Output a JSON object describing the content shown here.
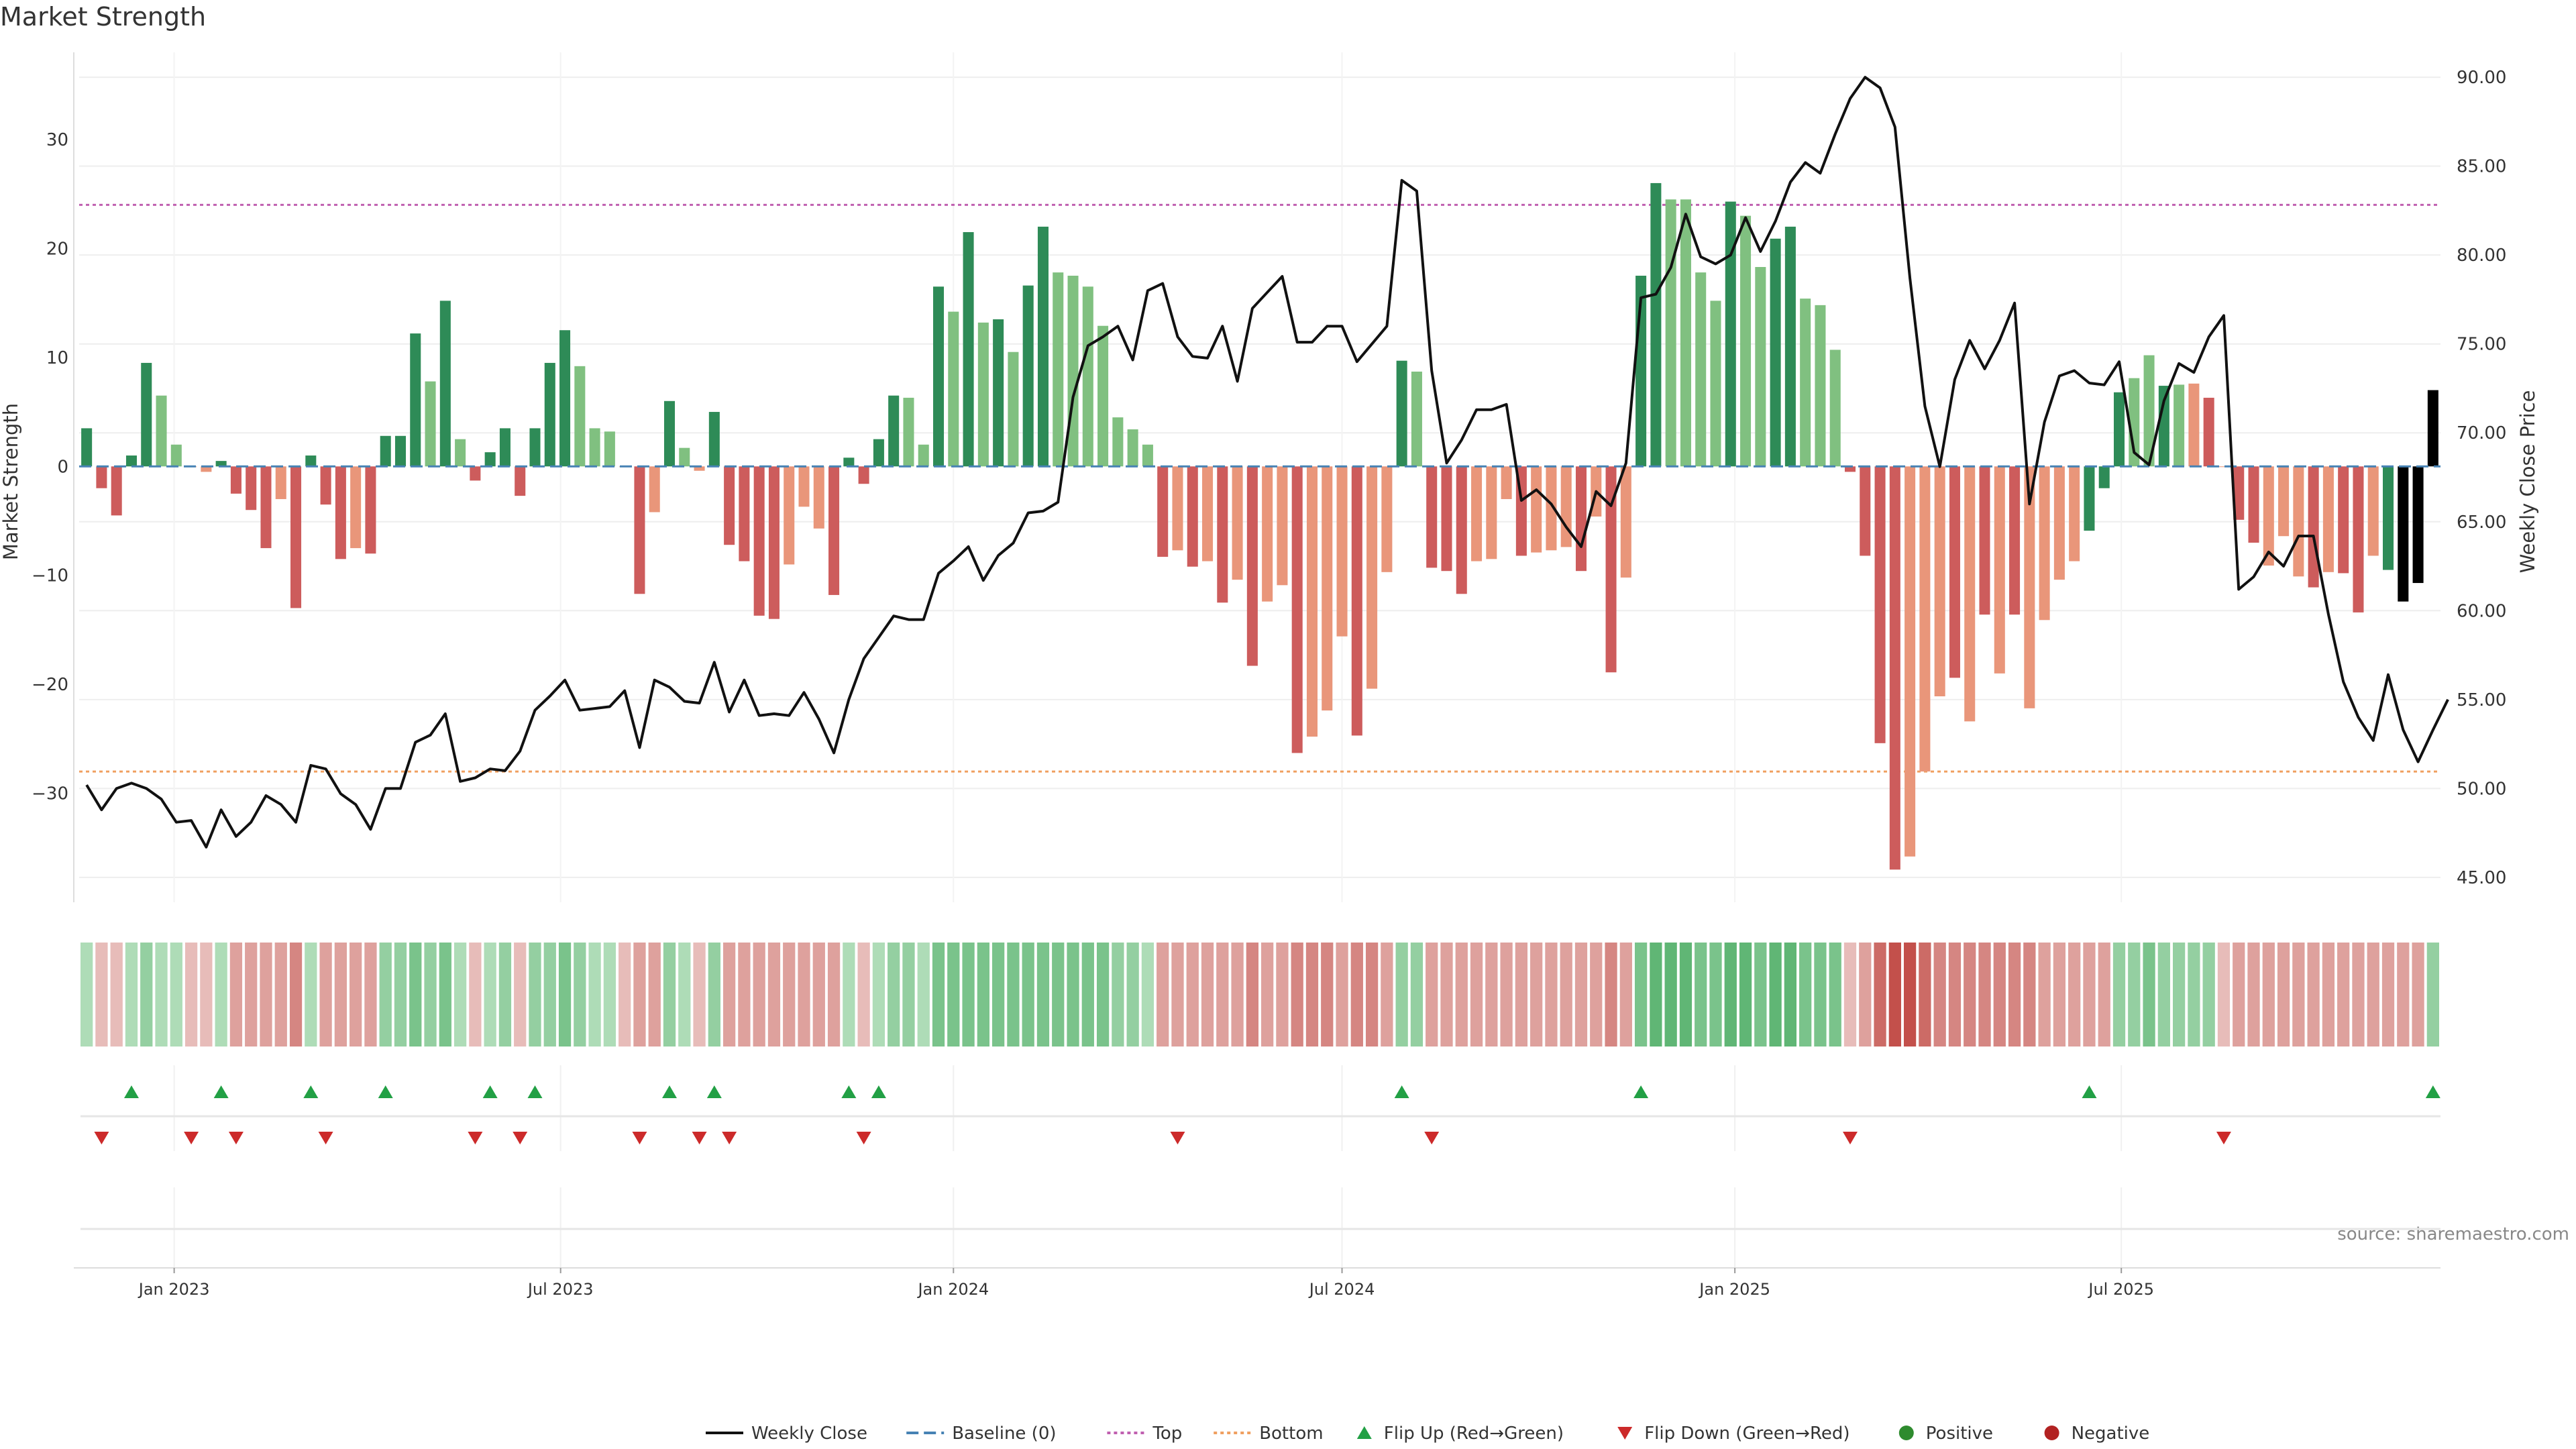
{
  "colors": {
    "strong_green": "#2e8b57",
    "light_green": "#80c080",
    "strong_red": "#cd5c5c",
    "light_red": "#e9967a",
    "line": "#111111",
    "top_line": "#c060b0",
    "bottom_line": "#f0a060",
    "baseline": "#4682b4",
    "flip_up": "#22a045",
    "flip_down": "#cc2a2a",
    "positive": "#2e8b2e",
    "negative": "#b22222",
    "grid": "#eeeeee",
    "source": "#888888"
  },
  "chart_data": {
    "type": "bar+line",
    "title": "Market Strength",
    "ylabel_left": "Market Strength",
    "ylabel_right": "Weekly Close Price",
    "source": "source: sharemaestro.com",
    "start_date": "2022-11-21",
    "x_ticks": [
      {
        "label": "Jan 2023",
        "date": "2023-01-01"
      },
      {
        "label": "Jul 2023",
        "date": "2023-07-01"
      },
      {
        "label": "Jan 2024",
        "date": "2024-01-01"
      },
      {
        "label": "Jul 2024",
        "date": "2024-07-01"
      },
      {
        "label": "Jan 2025",
        "date": "2025-01-01"
      },
      {
        "label": "Jul 2025",
        "date": "2025-07-01"
      }
    ],
    "left_axis": {
      "range": [
        -40,
        38
      ],
      "ticks": [
        30,
        20,
        10,
        0,
        -10,
        -20,
        -30
      ],
      "tick_labels": [
        "30",
        "20",
        "10",
        "0",
        "−10",
        "−20",
        "−30"
      ]
    },
    "right_axis": {
      "range": [
        43.6,
        91.4
      ],
      "ticks": [
        90,
        85,
        80,
        75,
        70,
        65,
        60,
        55,
        50,
        45
      ],
      "tick_labels": [
        "90.00",
        "85.00",
        "80.00",
        "75.00",
        "70.00",
        "65.00",
        "60.00",
        "55.00",
        "50.00",
        "45.00"
      ]
    },
    "top_threshold": 24,
    "bottom_threshold": -28,
    "baseline": 0,
    "strength": [
      3.5,
      -2,
      -4.5,
      1,
      9.5,
      6.5,
      2,
      0,
      -0.5,
      0.5,
      -2.5,
      -4,
      -7.5,
      -3,
      -13,
      1,
      -3.5,
      -8.5,
      -7.5,
      -8,
      2.8,
      2.8,
      12.2,
      7.8,
      15.2,
      2.5,
      -1.3,
      1.3,
      3.5,
      -2.7,
      3.5,
      9.5,
      12.5,
      9.2,
      3.5,
      3.2,
      0,
      -11.7,
      -4.2,
      6,
      1.7,
      -0.4,
      5,
      -7.2,
      -8.7,
      -13.7,
      -14,
      -9,
      -3.7,
      -5.7,
      -11.8,
      0.8,
      -1.6,
      2.5,
      6.5,
      6.3,
      2,
      16.5,
      14.2,
      21.5,
      13.2,
      13.5,
      10.5,
      16.6,
      22,
      17.8,
      17.5,
      16.5,
      12.9,
      4.5,
      3.4,
      2,
      -8.3,
      -7.7,
      -9.2,
      -8.7,
      -12.5,
      -10.4,
      -18.3,
      -12.4,
      -10.9,
      -26.3,
      -24.8,
      -22.4,
      -15.6,
      -24.7,
      -20.4,
      -9.7,
      9.7,
      8.7,
      -9.3,
      -9.6,
      -11.7,
      -8.7,
      -8.5,
      -3,
      -8.2,
      -7.9,
      -7.7,
      -7.4,
      -9.6,
      -4.6,
      -18.9,
      -10.2,
      17.5,
      26,
      24.5,
      24.5,
      17.8,
      15.2,
      24.3,
      23,
      18.3,
      20.9,
      22,
      15.4,
      14.8,
      10.7,
      -0.5,
      -8.2,
      -25.4,
      -37,
      -35.8,
      -28,
      -21.1,
      -19.4,
      -23.4,
      -13.6,
      -19,
      -13.6,
      -22.2,
      -14.1,
      -10.4,
      -8.7,
      -5.9,
      -2,
      6.8,
      8.1,
      10.2,
      7.4,
      7.5,
      7.6,
      6.3,
      0,
      -4.9,
      -7,
      -9.1,
      -6.4,
      -10.1,
      -11.1,
      -9.7,
      -9.8,
      -13.4,
      -8.2,
      -9.5,
      -12.4,
      -10.7,
      7
    ],
    "strength_color": [
      0,
      2,
      2,
      0,
      0,
      1,
      1,
      3,
      3,
      0,
      2,
      2,
      2,
      3,
      2,
      0,
      2,
      2,
      3,
      2,
      0,
      0,
      0,
      1,
      0,
      1,
      2,
      0,
      0,
      2,
      0,
      0,
      0,
      1,
      1,
      1,
      3,
      2,
      3,
      0,
      1,
      3,
      0,
      2,
      2,
      2,
      2,
      3,
      3,
      3,
      2,
      0,
      2,
      0,
      0,
      1,
      1,
      0,
      1,
      0,
      1,
      0,
      1,
      0,
      0,
      1,
      1,
      1,
      1,
      1,
      1,
      1,
      2,
      3,
      2,
      3,
      2,
      3,
      2,
      3,
      3,
      2,
      3,
      3,
      3,
      2,
      3,
      3,
      0,
      1,
      2,
      2,
      2,
      3,
      3,
      3,
      2,
      3,
      3,
      3,
      2,
      3,
      2,
      3,
      0,
      0,
      1,
      1,
      1,
      1,
      0,
      1,
      1,
      0,
      0,
      1,
      1,
      1,
      2,
      2,
      2,
      2,
      3,
      3,
      3,
      2,
      3,
      2,
      3,
      2,
      3,
      3,
      3,
      3,
      0,
      0,
      0,
      1,
      1,
      0,
      1,
      3,
      2,
      3,
      2,
      2,
      3,
      3,
      3,
      2,
      3,
      2,
      2,
      3,
      0
    ],
    "weekly_close": [
      50.2,
      48.8,
      50,
      50.3,
      50,
      49.4,
      48.1,
      48.2,
      46.7,
      48.8,
      47.3,
      48.1,
      49.6,
      49.1,
      48.1,
      51.3,
      51.1,
      49.7,
      49.1,
      47.7,
      50,
      50,
      52.6,
      53,
      54.2,
      50.4,
      50.6,
      51.1,
      51,
      52.1,
      54.4,
      55.2,
      56.1,
      54.4,
      54.5,
      54.6,
      55.5,
      52.3,
      56.1,
      55.7,
      54.9,
      54.8,
      57.1,
      54.3,
      56.1,
      54.1,
      54.2,
      54.1,
      55.4,
      53.9,
      52,
      55,
      57.3,
      58.5,
      59.7,
      59.5,
      59.5,
      62.1,
      62.8,
      63.6,
      61.7,
      63.1,
      63.8,
      65.5,
      65.6,
      66.1,
      72,
      74.9,
      75.4,
      76,
      74.1,
      78,
      78.4,
      75.4,
      74.3,
      74.2,
      76,
      72.9,
      77,
      77.9,
      78.8,
      75.1,
      75.1,
      76,
      76,
      74,
      75,
      76,
      84.2,
      83.6,
      73.5,
      68.3,
      69.6,
      71.3,
      71.3,
      71.6,
      66.2,
      66.8,
      66,
      64.7,
      63.6,
      66.7,
      65.9,
      68.3,
      77.6,
      77.8,
      79.3,
      82.3,
      79.9,
      79.5,
      80,
      82.1,
      80.2,
      81.9,
      84.1,
      85.2,
      84.6,
      86.8,
      88.8,
      90,
      89.4,
      87.2,
      78.7,
      71.5,
      68.1,
      73,
      75.2,
      73.6,
      75.2,
      77.3,
      66,
      70.6,
      73.2,
      73.5,
      72.8,
      72.7,
      74,
      68.9,
      68.2,
      71.8,
      73.9,
      73.4,
      75.4,
      76.6,
      61.2,
      61.9,
      63.3,
      62.5,
      64.2,
      64.2,
      59.8,
      56,
      54,
      52.7,
      56.4,
      53.3,
      51.5,
      53.3,
      55
    ]
  },
  "heatmap": {
    "levels": [
      1,
      -1,
      -1,
      1,
      2,
      1,
      1,
      -1,
      -1,
      1,
      -2,
      -2,
      -2,
      -2,
      -3,
      1,
      -2,
      -2,
      -2,
      -2,
      2,
      2,
      3,
      2,
      3,
      1,
      -1,
      1,
      2,
      -1,
      2,
      2,
      3,
      2,
      1,
      1,
      -1,
      -2,
      -2,
      2,
      1,
      -1,
      2,
      -2,
      -2,
      -2,
      -2,
      -2,
      -2,
      -2,
      -2,
      1,
      -1,
      1,
      2,
      2,
      1,
      3,
      3,
      3,
      3,
      3,
      3,
      3,
      3,
      3,
      3,
      3,
      3,
      2,
      2,
      1,
      -2,
      -2,
      -2,
      -2,
      -2,
      -2,
      -3,
      -2,
      -2,
      -3,
      -3,
      -3,
      -2,
      -3,
      -3,
      -2,
      2,
      2,
      -2,
      -2,
      -2,
      -2,
      -2,
      -2,
      -2,
      -2,
      -2,
      -2,
      -2,
      -2,
      -3,
      -2,
      3,
      4,
      4,
      4,
      3,
      3,
      4,
      4,
      3,
      4,
      4,
      3,
      3,
      3,
      -1,
      -2,
      -4,
      -5,
      -5,
      -4,
      -3,
      -3,
      -3,
      -3,
      -3,
      -3,
      -3,
      -2,
      -2,
      -2,
      -2,
      -2,
      2,
      2,
      3,
      2,
      2,
      2,
      2,
      -1,
      -2,
      -2,
      -2,
      -2,
      -2,
      -2,
      -2,
      -2,
      -2,
      -2,
      -2,
      -2,
      -2,
      2
    ]
  },
  "flips": {
    "up": [
      3,
      9,
      15,
      20,
      27,
      30,
      39,
      42,
      51,
      53,
      88,
      104,
      134,
      157
    ],
    "down": [
      1,
      7,
      10,
      16,
      26,
      29,
      37,
      41,
      43,
      52,
      73,
      90,
      118,
      143
    ]
  },
  "legend": [
    {
      "kind": "line",
      "label": "Weekly Close",
      "color": "#111111",
      "dash": ""
    },
    {
      "kind": "line",
      "label": "Baseline (0)",
      "color": "#4682b4",
      "dash": "18,8"
    },
    {
      "kind": "line",
      "label": "Top",
      "color": "#c060b0",
      "dash": "5,5"
    },
    {
      "kind": "line",
      "label": "Bottom",
      "color": "#f0a060",
      "dash": "5,5"
    },
    {
      "kind": "tri-up",
      "label": "Flip Up (Red→Green)",
      "color": "#22a045"
    },
    {
      "kind": "tri-down",
      "label": "Flip Down (Green→Red)",
      "color": "#cc2a2a"
    },
    {
      "kind": "dot",
      "label": "Positive",
      "color": "#2e8b2e"
    },
    {
      "kind": "dot",
      "label": "Negative",
      "color": "#b22222"
    }
  ]
}
